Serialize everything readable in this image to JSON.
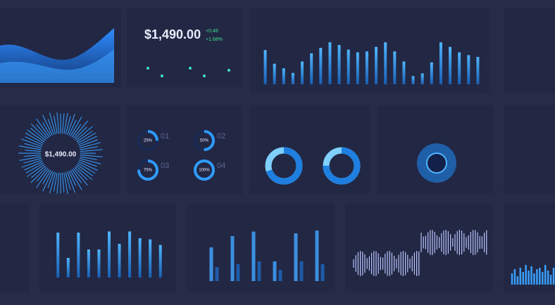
{
  "balance": {
    "amount": "$1,490.00",
    "change_a": "+0.48",
    "change_b": "+1.68%"
  },
  "main_bars": {
    "values": [
      75,
      45,
      35,
      25,
      50,
      68,
      80,
      92,
      86,
      76,
      70,
      72,
      82,
      92,
      72,
      50,
      18,
      24,
      48,
      92,
      82,
      70,
      64,
      60
    ]
  },
  "radial": {
    "amount": "$1,490.00"
  },
  "rings": [
    {
      "label": "25%",
      "value": 25,
      "index": "01"
    },
    {
      "label": "50%",
      "value": 50,
      "index": "02"
    },
    {
      "label": "75%",
      "value": 75,
      "index": "03"
    },
    {
      "label": "100%",
      "value": 100,
      "index": "04"
    }
  ],
  "donuts": [
    {
      "value": 70
    },
    {
      "value": 75
    }
  ],
  "bars_a": {
    "values": [
      80,
      35,
      80,
      50,
      50,
      82,
      60,
      82,
      70,
      68,
      58
    ]
  },
  "bars_b": {
    "values": [
      60,
      80,
      88,
      35,
      85,
      90
    ],
    "values_b": [
      25,
      30,
      35,
      20,
      35,
      30
    ]
  },
  "mini_bars": {
    "values": [
      40,
      55,
      30,
      60,
      45,
      70,
      50,
      65,
      40,
      55,
      60,
      45,
      70,
      50,
      35,
      60
    ]
  }
}
